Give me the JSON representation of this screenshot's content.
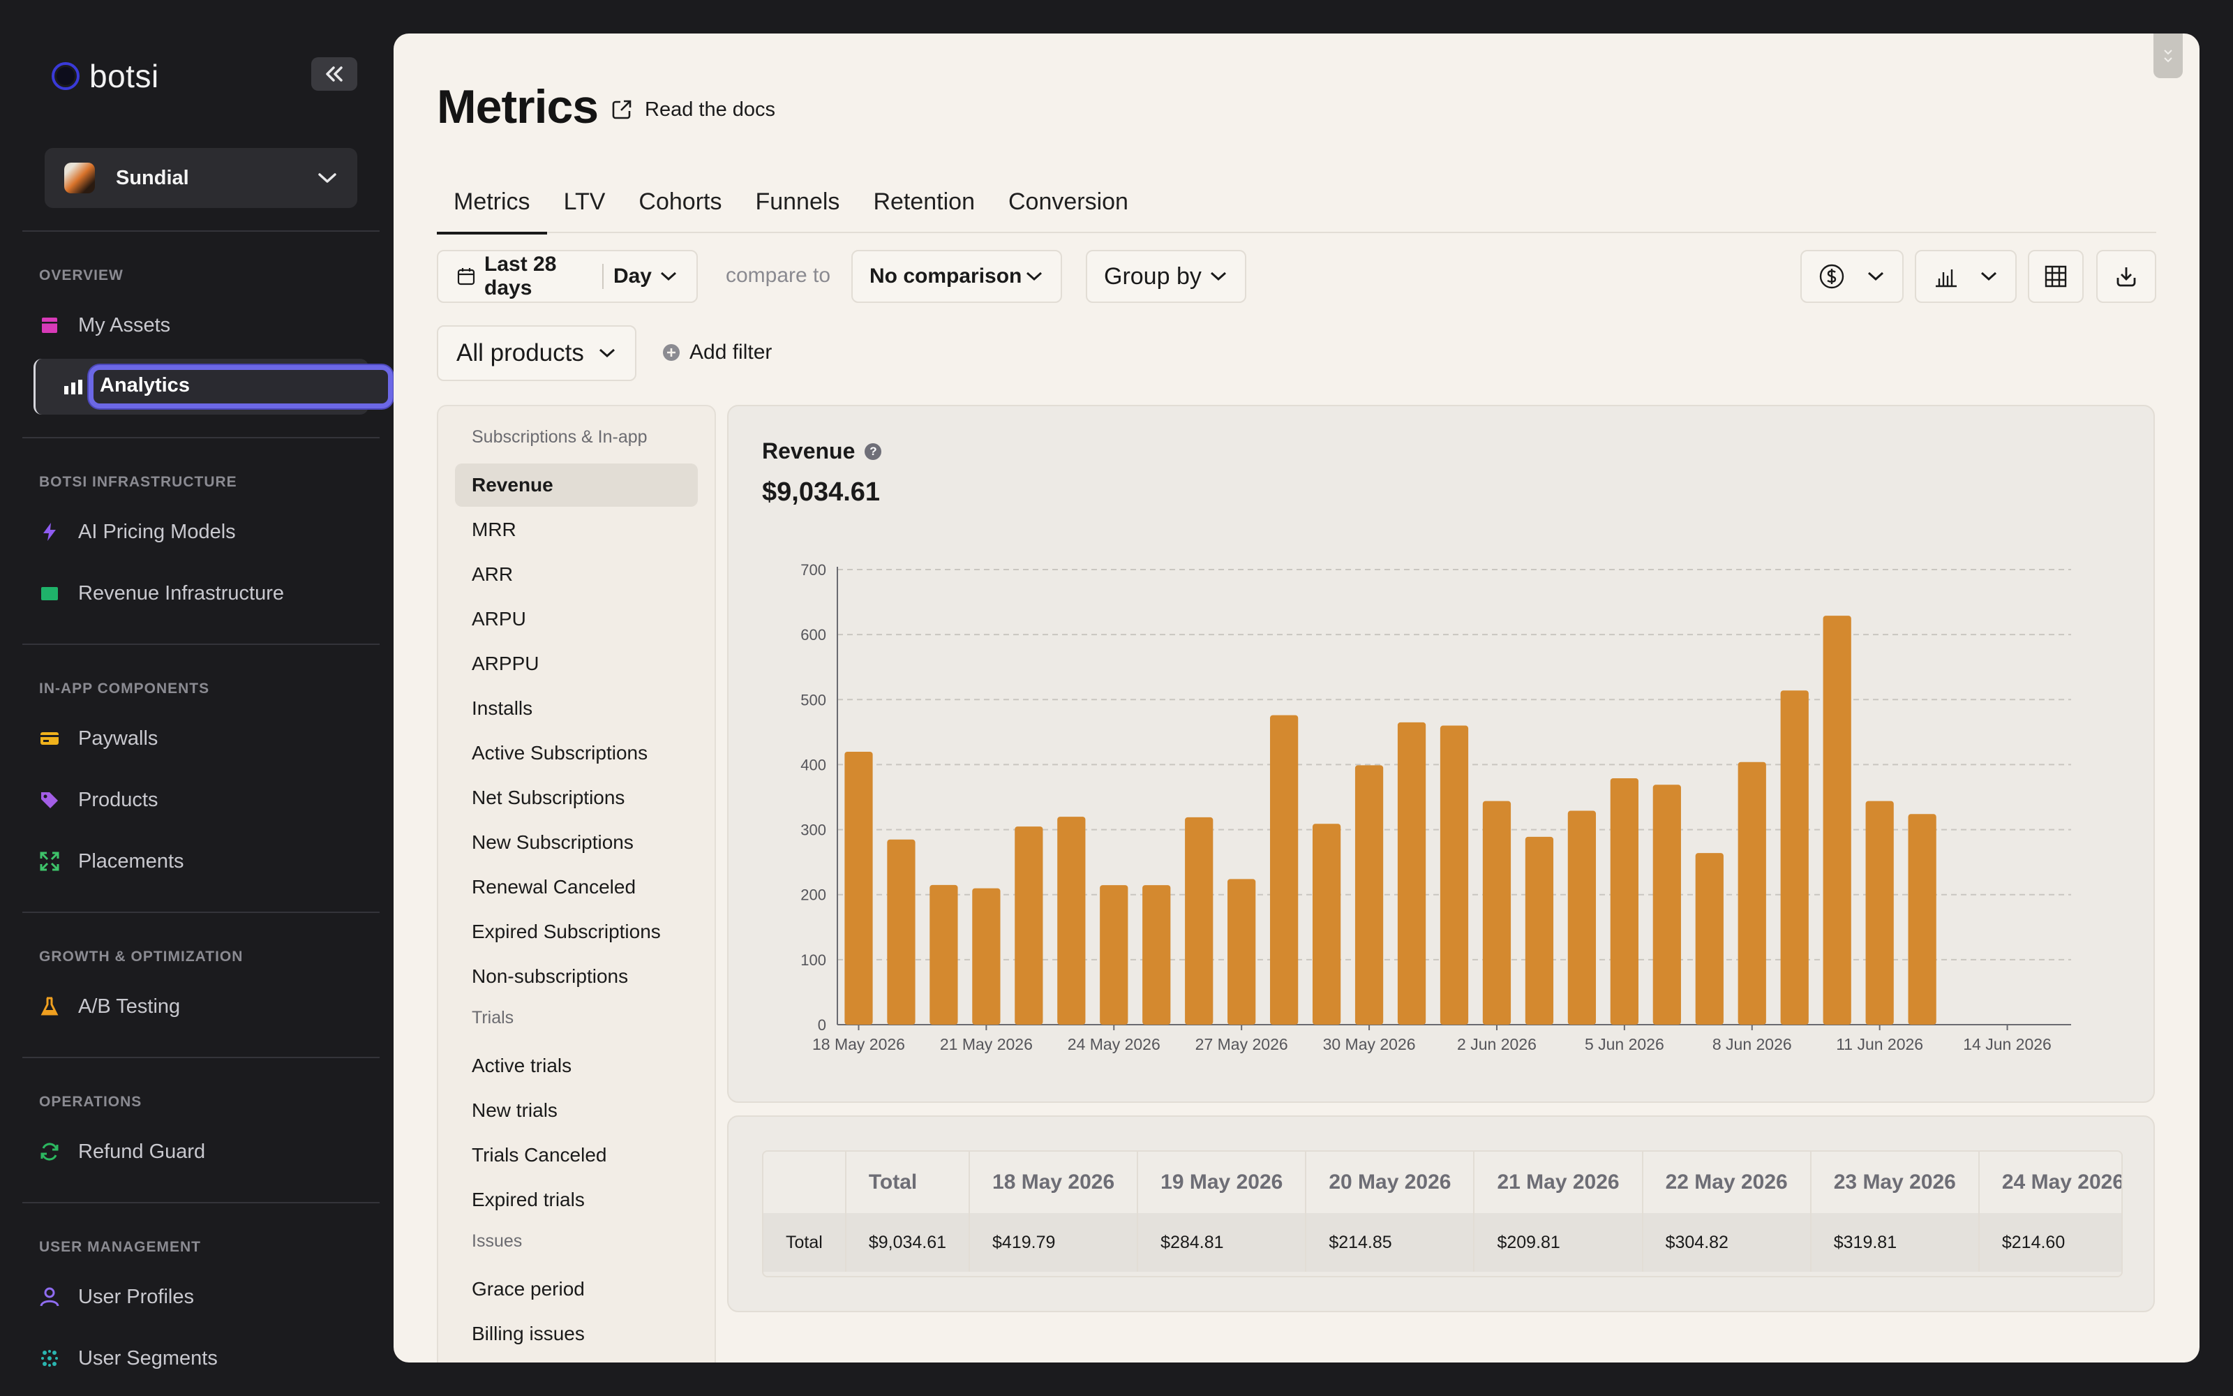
{
  "app": {
    "name": "botsi"
  },
  "sidebar": {
    "workspace": "Sundial",
    "sections": [
      {
        "title": "OVERVIEW",
        "items": [
          {
            "label": "My Assets",
            "icon": "assets-icon"
          },
          {
            "label": "Analytics",
            "icon": "bar-chart-icon",
            "active": true
          }
        ]
      },
      {
        "title": "BOTSI INFRASTRUCTURE",
        "items": [
          {
            "label": "AI Pricing Models",
            "icon": "bolt-icon"
          },
          {
            "label": "Revenue Infrastructure",
            "icon": "folder-icon"
          }
        ]
      },
      {
        "title": "IN-APP COMPONENTS",
        "items": [
          {
            "label": "Paywalls",
            "icon": "card-icon"
          },
          {
            "label": "Products",
            "icon": "tag-icon"
          },
          {
            "label": "Placements",
            "icon": "expand-icon"
          }
        ]
      },
      {
        "title": "GROWTH & OPTIMIZATION",
        "items": [
          {
            "label": "A/B Testing",
            "icon": "flask-icon"
          }
        ]
      },
      {
        "title": "OPERATIONS",
        "items": [
          {
            "label": "Refund Guard",
            "icon": "refresh-icon"
          }
        ]
      },
      {
        "title": "USER MANAGEMENT",
        "items": [
          {
            "label": "User Profiles",
            "icon": "user-icon"
          },
          {
            "label": "User Segments",
            "icon": "segments-icon"
          }
        ]
      }
    ]
  },
  "header": {
    "title": "Metrics",
    "docs_link": "Read the docs"
  },
  "tabs": [
    "Metrics",
    "LTV",
    "Cohorts",
    "Funnels",
    "Retention",
    "Conversion"
  ],
  "controls": {
    "date_range": "Last 28 days",
    "granularity": "Day",
    "compare_label": "compare to",
    "comparison": "No comparison",
    "group_by": "Group by",
    "products": "All products",
    "add_filter": "Add filter"
  },
  "metric_list": {
    "groups": [
      {
        "title": "Subscriptions & In-app",
        "items": [
          "Revenue",
          "MRR",
          "ARR",
          "ARPU",
          "ARPPU",
          "Installs",
          "Active Subscriptions",
          "Net Subscriptions",
          "New Subscriptions",
          "Renewal Canceled",
          "Expired Subscriptions",
          "Non-subscriptions"
        ]
      },
      {
        "title": "Trials",
        "items": [
          "Active trials",
          "New trials",
          "Trials Canceled",
          "Expired trials"
        ]
      },
      {
        "title": "Issues",
        "items": [
          "Grace period",
          "Billing issues"
        ]
      }
    ],
    "selected": "Revenue"
  },
  "chart": {
    "title": "Revenue",
    "total": "$9,034.61",
    "bar_color": "#d4892f"
  },
  "chart_data": {
    "type": "bar",
    "title": "Revenue",
    "x_start": "18 May 2026",
    "x_tick_labels": [
      "18 May 2026",
      "21 May 2026",
      "24 May 2026",
      "27 May 2026",
      "30 May 2026",
      "2 Jun 2026",
      "5 Jun 2026",
      "8 Jun 2026",
      "11 Jun 2026",
      "14 Jun 2026"
    ],
    "y_ticks": [
      0,
      100,
      200,
      300,
      400,
      500,
      600,
      700
    ],
    "ylim": [
      0,
      700
    ],
    "xlim_days": 29,
    "values": [
      419.79,
      284.81,
      214.85,
      209.81,
      304.82,
      319.81,
      214.6,
      214.6,
      319.0,
      224.0,
      476.0,
      309.0,
      399.0,
      465.0,
      460.0,
      344.0,
      289.0,
      329.0,
      379.0,
      369.0,
      264.0,
      404.0,
      514.0,
      629.0,
      344.0,
      324.0
    ],
    "grid": true
  },
  "table": {
    "columns": [
      "Total",
      "18 May 2026",
      "19 May 2026",
      "20 May 2026",
      "21 May 2026",
      "22 May 2026",
      "23 May 2026",
      "24 May 2026"
    ],
    "rows": [
      {
        "label": "Total",
        "values": [
          "$9,034.61",
          "$419.79",
          "$284.81",
          "$214.85",
          "$209.81",
          "$304.82",
          "$319.81",
          "$214.60"
        ]
      }
    ]
  }
}
